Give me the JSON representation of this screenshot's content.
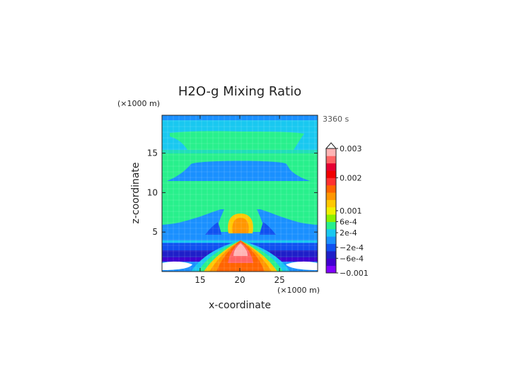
{
  "chart_data": {
    "type": "heatmap",
    "title": "H2O-g Mixing Ratio",
    "time_label": "3360 s",
    "xlabel": "x-coordinate",
    "ylabel": "z-coordinate",
    "x_unit": "(×1000 m)",
    "z_unit": "(×1000 m)",
    "xlim": [
      10.2,
      29.8
    ],
    "ylim": [
      0,
      19.8
    ],
    "x_ticks": [
      15,
      20,
      25
    ],
    "z_ticks": [
      5,
      10,
      15
    ],
    "colorbar": {
      "levels": [
        {
          "color": "#7f00ff"
        },
        {
          "color": "#3f00cf"
        },
        {
          "color": "#1f1fc8"
        },
        {
          "color": "#1050f0"
        },
        {
          "color": "#1a90ff"
        },
        {
          "color": "#19c8f0"
        },
        {
          "color": "#28f08c"
        },
        {
          "color": "#8cf000"
        },
        {
          "color": "#f0f000"
        },
        {
          "color": "#ffc800"
        },
        {
          "color": "#ff9600"
        },
        {
          "color": "#ff6400"
        },
        {
          "color": "#ff3030"
        },
        {
          "color": "#f00000"
        },
        {
          "color": "#e60032"
        },
        {
          "color": "#ff6464"
        },
        {
          "color": "#ffb4b4"
        }
      ],
      "labels": [
        "0.003",
        "0.002",
        "0.001",
        "6e-4",
        "2e-4",
        "−2e-4",
        "−6e-4",
        "−0.001"
      ],
      "label_positions": [
        17,
        13,
        8.5,
        7,
        5.5,
        3.5,
        2,
        0
      ]
    }
  }
}
